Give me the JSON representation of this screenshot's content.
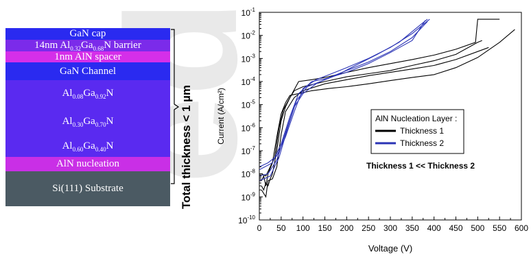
{
  "layer_stack": {
    "layers": [
      {
        "parts": [
          {
            "t": "GaN cap"
          }
        ],
        "color": "#2a2af0",
        "height": 17
      },
      {
        "parts": [
          {
            "t": "14nm Al"
          },
          {
            "s": "0.32"
          },
          {
            "t": "Ga"
          },
          {
            "s": "0.68"
          },
          {
            "t": "N barrier"
          }
        ],
        "color": "#7b2bea",
        "height": 17
      },
      {
        "parts": [
          {
            "t": "1nm AlN spacer"
          }
        ],
        "color": "#d52fe9",
        "height": 16
      },
      {
        "parts": [
          {
            "t": "GaN Channel"
          }
        ],
        "color": "#2a2af0",
        "height": 26
      },
      {
        "parts": [
          {
            "t": "Al"
          },
          {
            "s": "0.08"
          },
          {
            "t": "Ga"
          },
          {
            "s": "0.92"
          },
          {
            "t": "N"
          }
        ],
        "color": "#5a2af0",
        "height": 40
      },
      {
        "parts": [
          {
            "t": "Al"
          },
          {
            "s": "0.30"
          },
          {
            "t": "Ga"
          },
          {
            "s": "0.70"
          },
          {
            "t": "N"
          }
        ],
        "color": "#5a2af0",
        "height": 42
      },
      {
        "parts": [
          {
            "t": "Al"
          },
          {
            "s": "0.60"
          },
          {
            "t": "Ga"
          },
          {
            "s": "0.40"
          },
          {
            "t": "N"
          }
        ],
        "color": "#5a2af0",
        "height": 30
      },
      {
        "parts": [
          {
            "t": "AlN nucleation"
          }
        ],
        "color": "#c92fe6",
        "height": 21
      },
      {
        "parts": [
          {
            "t": "Si(111) Substrate"
          }
        ],
        "color": "#4b5a63",
        "height": 51
      }
    ]
  },
  "annotation": {
    "total_thickness": "Total thickness < 1 µm"
  },
  "chart_data": {
    "type": "line",
    "xlabel": "Voltage (V)",
    "ylabel": "Current (A/cm²)",
    "xlim": [
      0,
      600
    ],
    "ylim": [
      1e-10,
      0.1
    ],
    "yscale": "log",
    "x_ticks": [
      0,
      50,
      100,
      150,
      200,
      250,
      300,
      350,
      400,
      450,
      500,
      550,
      600
    ],
    "y_ticks": [
      {
        "exp": -10,
        "label": "10",
        "sup": "-10"
      },
      {
        "exp": -9,
        "label": "10",
        "sup": "-9"
      },
      {
        "exp": -8,
        "label": "10",
        "sup": "-8"
      },
      {
        "exp": -7,
        "label": "10",
        "sup": "-7"
      },
      {
        "exp": -6,
        "label": "10",
        "sup": "-6"
      },
      {
        "exp": -5,
        "label": "10",
        "sup": "-5"
      },
      {
        "exp": -4,
        "label": "10",
        "sup": "-4"
      },
      {
        "exp": -3,
        "label": "10",
        "sup": "-3"
      },
      {
        "exp": -2,
        "label": "10",
        "sup": "-2"
      },
      {
        "exp": -1,
        "label": "10",
        "sup": "-1"
      }
    ],
    "legend": {
      "title": "AlN Nucleation Layer :",
      "placement": "center-right",
      "entries": [
        {
          "name": "Thickness 1",
          "color": "#000000"
        },
        {
          "name": "Thickness 2",
          "color": "#2a33b5"
        }
      ]
    },
    "annotation": "Thickness 1 << Thickness 2",
    "series": [
      {
        "name": "Thickness 1",
        "color": "#000000",
        "points": [
          [
            5,
            3e-09
          ],
          [
            10,
            2e-09
          ],
          [
            15,
            4e-09
          ],
          [
            20,
            3e-09
          ],
          [
            25,
            6e-09
          ],
          [
            30,
            1e-08
          ],
          [
            40,
            1e-07
          ],
          [
            50,
            2e-06
          ],
          [
            60,
            8e-06
          ],
          [
            70,
            2e-05
          ],
          [
            80,
            4e-05
          ],
          [
            100,
            6e-05
          ],
          [
            150,
            0.0001
          ],
          [
            200,
            0.00016
          ],
          [
            250,
            0.00022
          ],
          [
            300,
            0.0003
          ],
          [
            350,
            0.0005
          ],
          [
            400,
            0.0008
          ],
          [
            450,
            0.0015
          ],
          [
            500,
            0.005
          ],
          [
            510,
            0.006
          ]
        ]
      },
      {
        "name": "Thickness 1",
        "color": "#000000",
        "points": [
          [
            5,
            5e-09
          ],
          [
            10,
            8e-09
          ],
          [
            15,
            3e-09
          ],
          [
            20,
            1e-08
          ],
          [
            30,
            3e-08
          ],
          [
            40,
            4e-07
          ],
          [
            50,
            4e-06
          ],
          [
            60,
            1.2e-05
          ],
          [
            70,
            2.5e-05
          ],
          [
            90,
            3e-05
          ],
          [
            120,
            4e-05
          ],
          [
            160,
            5e-05
          ],
          [
            200,
            6e-05
          ],
          [
            250,
            8e-05
          ],
          [
            300,
            0.00011
          ],
          [
            350,
            0.00015
          ],
          [
            400,
            0.0002
          ],
          [
            450,
            0.0004
          ],
          [
            500,
            0.0011
          ],
          [
            550,
            0.005
          ],
          [
            585,
            0.018
          ]
        ]
      },
      {
        "name": "Thickness 1",
        "color": "#000000",
        "points": [
          [
            5,
            1e-08
          ],
          [
            15,
            8e-09
          ],
          [
            25,
            2e-08
          ],
          [
            35,
            5e-08
          ],
          [
            45,
            1e-06
          ],
          [
            55,
            6e-06
          ],
          [
            70,
            2e-05
          ],
          [
            90,
            0.0001
          ],
          [
            120,
            0.00012
          ],
          [
            150,
            0.00015
          ],
          [
            200,
            0.00025
          ],
          [
            250,
            0.0004
          ],
          [
            300,
            0.0006
          ],
          [
            350,
            0.0009
          ],
          [
            400,
            0.0014
          ],
          [
            450,
            0.0025
          ],
          [
            495,
            0.005
          ],
          [
            500,
            0.05
          ],
          [
            550,
            0.05
          ]
        ]
      },
      {
        "name": "Thickness 1",
        "color": "#000000",
        "points": [
          [
            5,
            2e-09
          ],
          [
            15,
            1e-09
          ],
          [
            20,
            5e-09
          ],
          [
            30,
            6e-09
          ],
          [
            40,
            2e-08
          ],
          [
            50,
            5e-07
          ],
          [
            60,
            5e-06
          ],
          [
            80,
            2e-05
          ],
          [
            100,
            4e-05
          ],
          [
            150,
            8e-05
          ],
          [
            200,
            0.00012
          ],
          [
            250,
            0.00018
          ],
          [
            300,
            0.00025
          ],
          [
            350,
            0.00035
          ],
          [
            400,
            0.0005
          ],
          [
            450,
            0.0009
          ],
          [
            500,
            0.002
          ],
          [
            525,
            0.003
          ]
        ]
      },
      {
        "name": "Thickness 2",
        "color": "#2a33b5",
        "points": [
          [
            0,
            2e-08
          ],
          [
            20,
            3e-08
          ],
          [
            40,
            6e-08
          ],
          [
            60,
            4e-07
          ],
          [
            80,
            5e-06
          ],
          [
            100,
            5e-05
          ],
          [
            130,
            0.00012
          ],
          [
            160,
            0.0002
          ],
          [
            200,
            0.0004
          ],
          [
            250,
            0.001
          ],
          [
            300,
            0.003
          ],
          [
            350,
            0.012
          ],
          [
            380,
            0.035
          ],
          [
            390,
            0.05
          ]
        ]
      },
      {
        "name": "Thickness 2",
        "color": "#2a33b5",
        "points": [
          [
            0,
            8e-09
          ],
          [
            20,
            1e-08
          ],
          [
            40,
            4e-08
          ],
          [
            60,
            6e-07
          ],
          [
            80,
            8e-06
          ],
          [
            100,
            3e-05
          ],
          [
            130,
            8e-05
          ],
          [
            160,
            0.00015
          ],
          [
            200,
            0.0003
          ],
          [
            250,
            0.0007
          ],
          [
            300,
            0.002
          ],
          [
            350,
            0.008
          ],
          [
            385,
            0.04
          ]
        ]
      },
      {
        "name": "Thickness 2",
        "color": "#2a33b5",
        "points": [
          [
            0,
            5e-09
          ],
          [
            25,
            8e-09
          ],
          [
            45,
            5e-08
          ],
          [
            65,
            1e-06
          ],
          [
            85,
            1.5e-05
          ],
          [
            110,
            6e-05
          ],
          [
            140,
            0.0001
          ],
          [
            180,
            0.0002
          ],
          [
            220,
            0.0005
          ],
          [
            270,
            0.0015
          ],
          [
            320,
            0.005
          ],
          [
            370,
            0.03
          ],
          [
            385,
            0.05
          ]
        ]
      },
      {
        "name": "Thickness 2",
        "color": "#2a33b5",
        "points": [
          [
            0,
            1.5e-08
          ],
          [
            30,
            3e-08
          ],
          [
            50,
            2e-07
          ],
          [
            70,
            3e-06
          ],
          [
            90,
            3e-05
          ],
          [
            120,
            0.0001
          ],
          [
            150,
            0.00013
          ],
          [
            200,
            0.00025
          ],
          [
            250,
            0.0006
          ],
          [
            300,
            0.0018
          ],
          [
            350,
            0.006
          ],
          [
            380,
            0.045
          ]
        ]
      }
    ]
  }
}
